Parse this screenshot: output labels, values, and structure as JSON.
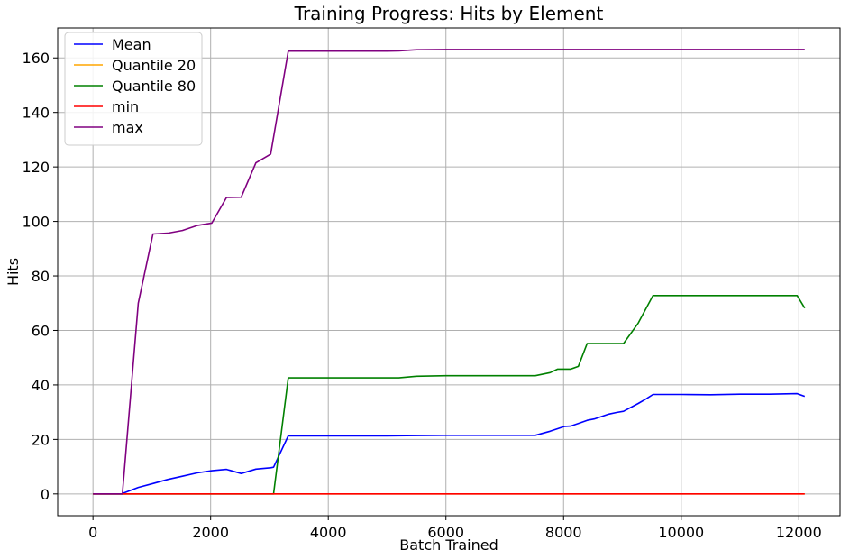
{
  "chart_data": {
    "type": "line",
    "title": "Training Progress: Hits by Element",
    "xlabel": "Batch Trained",
    "ylabel": "Hits",
    "xlim": [
      -600,
      12700
    ],
    "ylim": [
      -8,
      171
    ],
    "xticks": [
      0,
      2000,
      4000,
      6000,
      8000,
      10000,
      12000
    ],
    "yticks": [
      0,
      20,
      40,
      60,
      80,
      100,
      120,
      140,
      160
    ],
    "grid": true,
    "legend_position": "top-left",
    "series": [
      {
        "name": "Mean",
        "color": "#0000ff",
        "x": [
          0,
          250,
          500,
          520,
          770,
          1020,
          1270,
          1520,
          1770,
          2020,
          2270,
          2520,
          2770,
          3020,
          3070,
          3320,
          4000,
          5000,
          5500,
          6000,
          7000,
          7520,
          7770,
          8020,
          8120,
          8270,
          8400,
          8520,
          8770,
          8900,
          9020,
          9270,
          9400,
          9520,
          10000,
          10500,
          11000,
          11500,
          11970,
          12100
        ],
        "y": [
          0,
          0,
          0,
          0.3,
          2.4,
          3.8,
          5.3,
          6.5,
          7.7,
          8.5,
          9.0,
          7.5,
          9.1,
          9.6,
          9.8,
          21.3,
          21.3,
          21.3,
          21.4,
          21.5,
          21.5,
          21.5,
          23.0,
          24.8,
          24.9,
          26.0,
          27.0,
          27.5,
          29.3,
          29.9,
          30.3,
          33.2,
          34.8,
          36.5,
          36.5,
          36.4,
          36.6,
          36.6,
          36.8,
          35.8
        ]
      },
      {
        "name": "Quantile 20",
        "color": "#ffa500",
        "x": [
          0,
          1000,
          2000,
          3000,
          4000,
          6000,
          8000,
          10000,
          12100
        ],
        "y": [
          0,
          0,
          0,
          0,
          0,
          0,
          0,
          0,
          0
        ]
      },
      {
        "name": "Quantile 80",
        "color": "#008000",
        "x": [
          0,
          1000,
          2000,
          3000,
          3070,
          3320,
          4000,
          5000,
          5200,
          5500,
          6000,
          7000,
          7520,
          7770,
          7900,
          8120,
          8250,
          8400,
          8520,
          9020,
          9270,
          9520,
          10000,
          11000,
          11970,
          12100
        ],
        "y": [
          0,
          0,
          0,
          0,
          0,
          42.6,
          42.6,
          42.6,
          42.6,
          43.2,
          43.4,
          43.4,
          43.4,
          44.5,
          45.8,
          45.8,
          46.8,
          55.2,
          55.2,
          55.2,
          62.7,
          72.8,
          72.8,
          72.8,
          72.8,
          68.2
        ]
      },
      {
        "name": "min",
        "color": "#ff0000",
        "x": [
          0,
          1000,
          2000,
          3000,
          4000,
          6000,
          8000,
          10000,
          12100
        ],
        "y": [
          0,
          0,
          0,
          0,
          0,
          0,
          0,
          0,
          0
        ]
      },
      {
        "name": "max",
        "color": "#800080",
        "x": [
          0,
          250,
          500,
          770,
          1020,
          1270,
          1520,
          1770,
          2020,
          2270,
          2520,
          2770,
          3020,
          3320,
          4000,
          5000,
          5200,
          5500,
          6000,
          7000,
          8000,
          9000,
          10000,
          11000,
          12100
        ],
        "y": [
          0,
          0,
          0,
          70.0,
          95.4,
          95.7,
          96.7,
          98.5,
          99.4,
          108.8,
          108.9,
          121.5,
          124.7,
          162.5,
          162.5,
          162.5,
          162.6,
          163.0,
          163.1,
          163.1,
          163.1,
          163.1,
          163.1,
          163.1,
          163.1
        ]
      }
    ]
  }
}
